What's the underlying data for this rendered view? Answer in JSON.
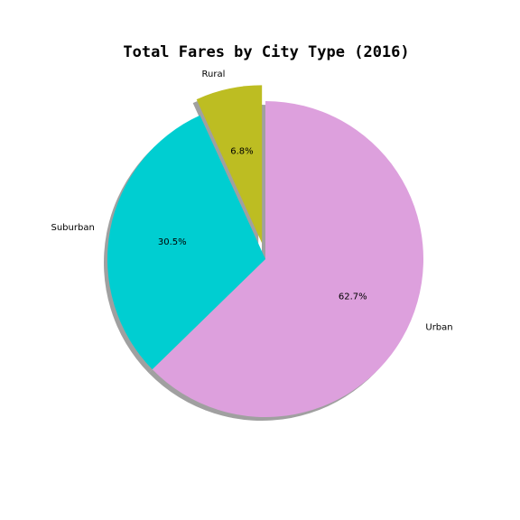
{
  "chart_data": {
    "type": "pie",
    "title": "Total Fares by City Type (2016)",
    "categories": [
      "Urban",
      "Suburban",
      "Rural"
    ],
    "values": [
      62.7,
      30.5,
      6.8
    ],
    "percent_labels": [
      "62.7%",
      "30.5%",
      "6.8%"
    ],
    "colors": [
      "#dda0dd",
      "#00ced1",
      "#bdbd22"
    ],
    "exploded": [
      "Rural"
    ],
    "shadow": true,
    "start_angle_deg": 90,
    "direction": "clockwise"
  }
}
